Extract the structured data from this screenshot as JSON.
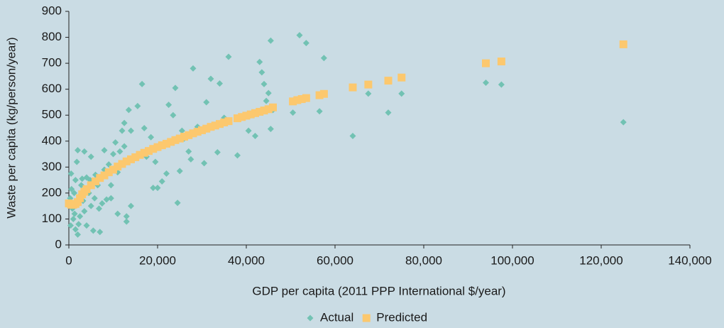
{
  "chart_data": {
    "type": "scatter",
    "xlabel": "GDP per capita (2011 PPP International $/year)",
    "ylabel": "Waste per capita (kg/person/year)",
    "xlim": [
      0,
      140000
    ],
    "ylim": [
      0,
      900
    ],
    "xticks": [
      0,
      {
        "value": 20000,
        "label": "20,000"
      },
      {
        "value": 40000,
        "label": "40,000"
      },
      {
        "value": 60000,
        "label": "60,000"
      },
      {
        "value": 80000,
        "label": "80,000"
      },
      {
        "value": 100000,
        "label": "100,000"
      },
      {
        "value": 120000,
        "label": "120,000"
      },
      {
        "value": 140000,
        "label": "140,000"
      }
    ],
    "yticks": [
      0,
      100,
      200,
      300,
      400,
      500,
      600,
      700,
      800,
      900
    ],
    "grid": false,
    "legend": "bottom",
    "series": [
      {
        "name": "Actual",
        "color": "#72c2b3",
        "marker": "diamond",
        "x": [
          125000,
          97500,
          94000,
          75000,
          72000,
          67500,
          64000,
          57500,
          56500,
          53500,
          52000,
          50500,
          45500,
          45500,
          45000,
          44500,
          43500,
          43000,
          44000,
          42000,
          40500,
          38000,
          36000,
          34000,
          33500,
          32000,
          31000,
          30500,
          28000,
          27500,
          27000,
          25000,
          24500,
          24000,
          23500,
          22500,
          22000,
          21000,
          20000,
          19000,
          18500,
          17000,
          16500,
          15500,
          14000,
          14000,
          13500,
          13000,
          13000,
          12500,
          12000,
          11500,
          11000,
          10500,
          10000,
          9500,
          9000,
          8500,
          8000,
          8000,
          7500,
          7000,
          7000,
          6500,
          6000,
          5500,
          5000,
          5000,
          4500,
          4000,
          4000,
          3500,
          3500,
          3000,
          2500,
          2500,
          2000,
          2000,
          1800,
          1500,
          1500,
          1200,
          1000,
          800,
          600,
          500,
          400,
          300,
          1300,
          2200,
          2800,
          3200,
          4800,
          5800,
          6800,
          9500,
          11000,
          12500,
          17500,
          19500,
          25500,
          26000,
          29000,
          35000,
          41000,
          46000
        ],
        "values": [
          473,
          618,
          625,
          583,
          510,
          583,
          420,
          720,
          515,
          778,
          808,
          510,
          787,
          447,
          585,
          555,
          665,
          705,
          620,
          420,
          440,
          345,
          725,
          622,
          357,
          640,
          550,
          315,
          680,
          330,
          360,
          285,
          162,
          605,
          500,
          540,
          275,
          245,
          220,
          220,
          415,
          450,
          620,
          535,
          440,
          150,
          520,
          90,
          110,
          470,
          440,
          360,
          120,
          395,
          350,
          180,
          310,
          175,
          365,
          290,
          160,
          50,
          255,
          230,
          270,
          55,
          340,
          150,
          200,
          260,
          75,
          360,
          130,
          255,
          190,
          110,
          365,
          40,
          320,
          250,
          60,
          200,
          100,
          140,
          215,
          275,
          75,
          180,
          120,
          80,
          230,
          170,
          250,
          180,
          140,
          230,
          280,
          380,
          340,
          320,
          440,
          410,
          455,
          490,
          500,
          520
        ]
      },
      {
        "name": "Predicted",
        "color": "#fcc86e",
        "marker": "square",
        "x": [
          0,
          500,
          1000,
          1500,
          2000,
          2500,
          3000,
          3500,
          4000,
          5000,
          6000,
          7000,
          8000,
          9000,
          10000,
          11000,
          12000,
          13000,
          14000,
          15000,
          16000,
          17000,
          18000,
          19000,
          20000,
          21000,
          22000,
          23000,
          24000,
          25000,
          26000,
          27000,
          28000,
          29000,
          30000,
          31000,
          32000,
          33000,
          34000,
          35000,
          36000,
          38000,
          39000,
          40000,
          41000,
          42000,
          43000,
          44000,
          45000,
          46000,
          50500,
          51500,
          52500,
          53500,
          56500,
          57500,
          64000,
          67500,
          72000,
          75000,
          94000,
          97500,
          125000
        ],
        "values": [
          160,
          155,
          155,
          158,
          165,
          180,
          195,
          205,
          215,
          230,
          245,
          258,
          268,
          280,
          290,
          302,
          312,
          322,
          330,
          338,
          347,
          355,
          362,
          370,
          377,
          384,
          390,
          397,
          404,
          410,
          417,
          423,
          430,
          436,
          442,
          448,
          455,
          460,
          466,
          472,
          477,
          488,
          493,
          498,
          503,
          508,
          513,
          518,
          523,
          530,
          553,
          558,
          562,
          566,
          577,
          582,
          607,
          618,
          633,
          645,
          700,
          707,
          773
        ]
      }
    ]
  }
}
